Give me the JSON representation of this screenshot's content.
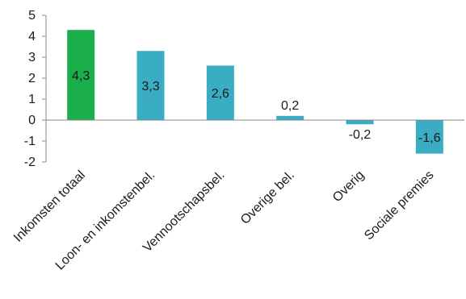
{
  "chart_data": {
    "type": "bar",
    "title": "",
    "xlabel": "",
    "ylabel": "",
    "categories": [
      "Inkomsten totaal",
      "Loon- en inkomstenbel.",
      "Vennootschapsbel.",
      "Overige bel.",
      "Overig",
      "Sociale premies"
    ],
    "values": [
      4.3,
      3.3,
      2.6,
      0.2,
      -0.2,
      -1.6
    ],
    "data_labels": [
      "4,3",
      "3,3",
      "2,6",
      "0,2",
      "-0,2",
      "-1,6"
    ],
    "ylim": [
      -2,
      5
    ],
    "yticks": [
      5,
      4,
      3,
      2,
      1,
      0,
      -1,
      -2
    ],
    "ytick_labels": [
      "5",
      "4",
      "3",
      "2",
      "1",
      "0",
      "-1",
      "-2"
    ],
    "grid": false,
    "legend": "none",
    "colors": {
      "highlight": "#1aaf4b",
      "default": "#3aacc4",
      "axis": "#888888"
    },
    "highlight_index": 0
  }
}
